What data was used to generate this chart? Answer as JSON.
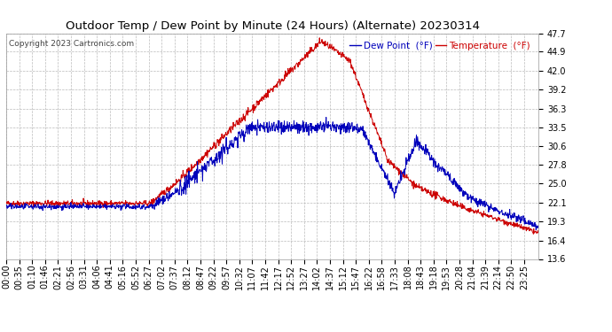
{
  "title": "Outdoor Temp / Dew Point by Minute (24 Hours) (Alternate) 20230314",
  "copyright_text": "Copyright 2023 Cartronics.com",
  "legend_dew": "Dew Point  (°F)",
  "legend_temp": "Temperature  (°F)",
  "yticks": [
    13.6,
    16.4,
    19.3,
    22.1,
    25.0,
    27.8,
    30.6,
    33.5,
    36.3,
    39.2,
    42.0,
    44.9,
    47.7
  ],
  "ymin": 13.6,
  "ymax": 47.7,
  "bg_color": "#ffffff",
  "plot_bg_color": "#ffffff",
  "grid_color": "#bbbbbb",
  "temp_color": "#cc0000",
  "dew_color": "#0000bb",
  "title_fontsize": 9.5,
  "copyright_fontsize": 6.5,
  "tick_fontsize": 7,
  "legend_fontsize": 7.5,
  "xtick_labels": [
    "00:00",
    "00:35",
    "01:10",
    "01:46",
    "02:21",
    "02:56",
    "03:31",
    "04:06",
    "04:41",
    "05:16",
    "05:52",
    "06:27",
    "07:02",
    "07:37",
    "08:12",
    "08:47",
    "09:22",
    "09:57",
    "10:32",
    "11:07",
    "11:42",
    "12:17",
    "12:52",
    "13:27",
    "14:02",
    "14:37",
    "15:12",
    "15:47",
    "16:22",
    "16:58",
    "17:33",
    "18:08",
    "18:43",
    "19:18",
    "19:53",
    "20:28",
    "21:04",
    "21:39",
    "22:14",
    "22:50",
    "23:25"
  ]
}
